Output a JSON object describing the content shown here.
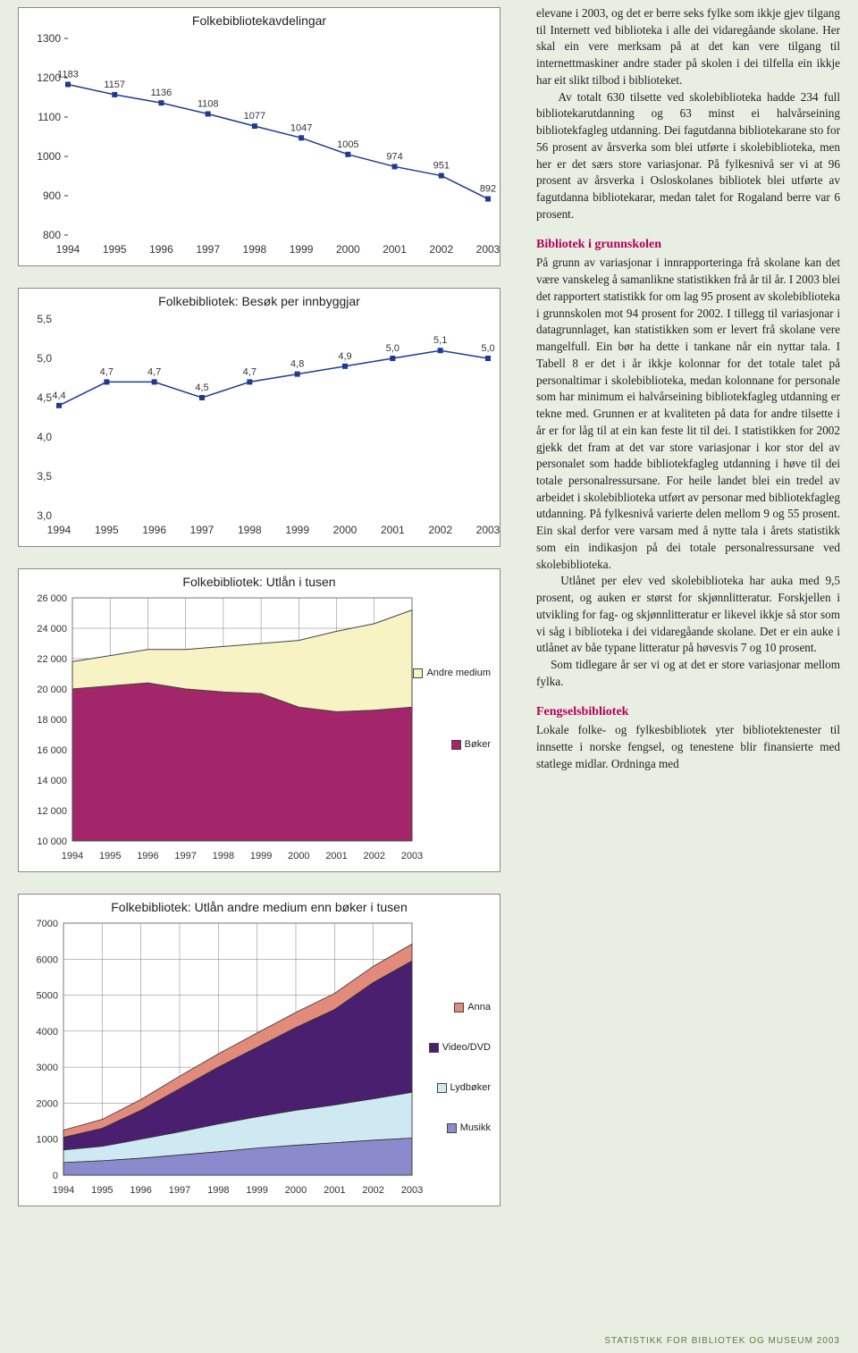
{
  "chart1": {
    "title": "Folkebibliotekavdelingar",
    "type": "line",
    "years": [
      1994,
      1995,
      1996,
      1997,
      1998,
      1999,
      2000,
      2001,
      2002,
      2003
    ],
    "values": [
      1183,
      1157,
      1136,
      1108,
      1077,
      1047,
      1005,
      974,
      951,
      892
    ],
    "ylim": [
      800,
      1300
    ],
    "ytick_step": 100,
    "line_color": "#1f3a93",
    "marker_color": "#1f3a93",
    "bg": "#ffffff",
    "axis_color": "#333333",
    "label_color": "#333333"
  },
  "chart2": {
    "title": "Folkebibliotek: Besøk per innbyggjar",
    "type": "line",
    "years": [
      1994,
      1995,
      1996,
      1997,
      1998,
      1999,
      2000,
      2001,
      2002,
      2003
    ],
    "values": [
      4.4,
      4.7,
      4.7,
      4.5,
      4.7,
      4.8,
      4.9,
      5.0,
      5.1,
      5.0
    ],
    "labels": [
      "4,4",
      "4,7",
      "4,7",
      "4,5",
      "4,7",
      "4,8",
      "4,9",
      "5,0",
      "5,1",
      "5,0"
    ],
    "ylim": [
      3.0,
      5.5
    ],
    "ytick_step": 0.5,
    "ylabels": [
      "3,0",
      "3,5",
      "4,0",
      "4,5",
      "5,0",
      "5,5"
    ],
    "line_color": "#1f3a93",
    "marker_color": "#1f3a93",
    "bg": "#ffffff",
    "axis_color": "#333333",
    "label_color": "#333333"
  },
  "chart3": {
    "title": "Folkebibliotek: Utlån i tusen",
    "type": "area",
    "years": [
      1994,
      1995,
      1996,
      1997,
      1998,
      1999,
      2000,
      2001,
      2002,
      2003
    ],
    "series": [
      {
        "name": "Bøker",
        "color": "#a3266a",
        "values": [
          20000,
          20200,
          20400,
          20000,
          19800,
          19700,
          18800,
          18500,
          18600,
          18800
        ]
      },
      {
        "name": "Andre medium",
        "color": "#f8f3c4",
        "values": [
          21800,
          22200,
          22600,
          22600,
          22800,
          23000,
          23200,
          23800,
          24300,
          25200
        ]
      }
    ],
    "ylim": [
      10000,
      26000
    ],
    "ytick_step": 2000,
    "grid_color": "#7a7a7a",
    "legend": [
      {
        "label": "Andre medium",
        "color": "#f8f3c4"
      },
      {
        "label": "Bøker",
        "color": "#a3266a"
      }
    ]
  },
  "chart4": {
    "title": "Folkebibliotek: Utlån andre medium enn bøker i tusen",
    "type": "area",
    "years": [
      1994,
      1995,
      1996,
      1997,
      1998,
      1999,
      2000,
      2001,
      2002,
      2003
    ],
    "cumulative": [
      {
        "name": "Musikk",
        "color": "#8a8acc",
        "values": [
          350,
          400,
          470,
          560,
          650,
          750,
          830,
          900,
          970,
          1030
        ]
      },
      {
        "name": "Lydbøker",
        "color": "#cfe9f3",
        "values": [
          700,
          800,
          1000,
          1200,
          1420,
          1620,
          1800,
          1950,
          2120,
          2300
        ]
      },
      {
        "name": "Video/DVD",
        "color": "#4a1f70",
        "values": [
          1050,
          1300,
          1800,
          2400,
          3000,
          3550,
          4100,
          4600,
          5350,
          5950
        ]
      },
      {
        "name": "Anna",
        "color": "#e28b7a",
        "values": [
          1250,
          1550,
          2100,
          2750,
          3370,
          3950,
          4520,
          5050,
          5800,
          6420
        ]
      }
    ],
    "ylim": [
      0,
      7000
    ],
    "ytick_step": 1000,
    "grid_color": "#7a7a7a",
    "legend": [
      {
        "label": "Anna",
        "color": "#e28b7a"
      },
      {
        "label": "Video/DVD",
        "color": "#4a1f70"
      },
      {
        "label": "Lydbøker",
        "color": "#cfe9f3"
      },
      {
        "label": "Musikk",
        "color": "#8a8acc"
      }
    ]
  },
  "text": {
    "p1": "elevane i 2003, og det er berre seks fylke som ikkje gjev tilgang til Internett ved biblioteka i alle dei vidaregåande skolane. Her skal ein vere merksam på at det kan vere tilgang til internettmaskiner andre stader på skolen i dei tilfella ein ikkje har eit slikt tilbod i biblioteket.",
    "p2": "    Av totalt 630 tilsette ved skolebiblioteka hadde 234 full bibliotekarutdanning og 63 minst ei halvårseining bibliotekfagleg utdanning. Dei fagutdanna bibliotekarane sto for 56 prosent av årsverka som blei utførte i skolebiblioteka, men her er det særs store variasjonar. På fylkesnivå ser vi at 96 prosent av årsverka i Osloskolanes bibliotek blei utførte av fagutdanna bibliotekarar, medan talet for Rogaland berre var 6 prosent.",
    "h1": "Bibliotek i grunnskolen",
    "p3": "På grunn av variasjonar i innrapporteringa frå skolane kan det være vanskeleg å samanlikne statistikken frå år til år. I 2003 blei det rapportert statistikk for om lag 95 prosent av skolebiblioteka i grunnskolen mot 94 prosent for 2002. I tillegg til variasjonar i datagrunnlaget, kan statistikken som er levert frå skolane vere mangelfull. Ein bør ha dette i tankane når ein nyttar tala. I Tabell 8 er det i år ikkje kolonnar for det totale talet på personaltimar i skolebiblioteka, medan kolonnane for personale som har minimum ei halvårseining bibliotekfagleg utdanning er tekne med. Grunnen er at kvaliteten på data for andre tilsette i år er for låg til at ein kan feste lit til dei. I statistikken for 2002 gjekk det fram at det var store variasjonar i kor stor del av personalet som hadde bibliotekfagleg utdanning i høve til dei totale personalressursane. For heile landet blei ein tredel av arbeidet i skolebiblioteka utført av personar med bibliotekfagleg utdanning. På fylkesnivå varierte delen mellom 9 og 55 prosent. Ein skal derfor vere varsam med å nytte tala i årets statistikk som ein indikasjon på dei totale personalressursane ved skolebiblioteka.",
    "p4": "    Utlånet per elev ved skolebiblioteka har auka med 9,5 prosent, og auken er størst for skjønnlitteratur. Forskjellen i utvikling for fag- og skjønnlitteratur er likevel ikkje så stor som vi såg i biblioteka i dei vidaregåande skolane. Det er ein auke i utlånet av båe typane litteratur på høvesvis 7 og 10 prosent.",
    "p5": "    Som tidlegare år ser vi og at det er store variasjonar mellom fylka.",
    "h2": "Fengselsbibliotek",
    "p6": "Lokale folke- og fylkesbibliotek yter bibliotektenester til innsette i norske fengsel, og tenestene blir finansierte med statlege midlar. Ordninga med",
    "footer": "STATISTIKK FOR BIBLIOTEK OG MUSEUM 2003"
  }
}
